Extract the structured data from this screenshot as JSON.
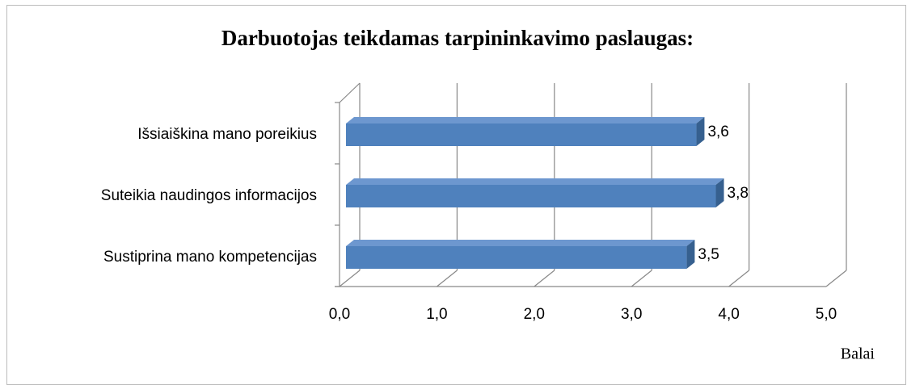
{
  "chart_data": {
    "type": "bar",
    "orientation": "horizontal",
    "three_d": true,
    "title": "Darbuotojas teikdamas tarpininkavimo paslaugas:",
    "categories": [
      "Išsiaiškina mano poreikius",
      "Suteikia naudingos informacijos",
      "Sustiprina mano kompetencijas"
    ],
    "values": [
      3.6,
      3.8,
      3.5
    ],
    "value_labels": [
      "3,6",
      "3,8",
      "3,5"
    ],
    "color": "#4f81bd",
    "xlim": [
      0,
      5
    ],
    "xticks": [
      {
        "value": 0,
        "label": "0,0"
      },
      {
        "value": 1,
        "label": "1,0"
      },
      {
        "value": 2,
        "label": "2,0"
      },
      {
        "value": 3,
        "label": "3,0"
      },
      {
        "value": 4,
        "label": "4,0"
      },
      {
        "value": 5,
        "label": "5,0"
      }
    ],
    "xlabel": "Balai",
    "grid": true
  }
}
